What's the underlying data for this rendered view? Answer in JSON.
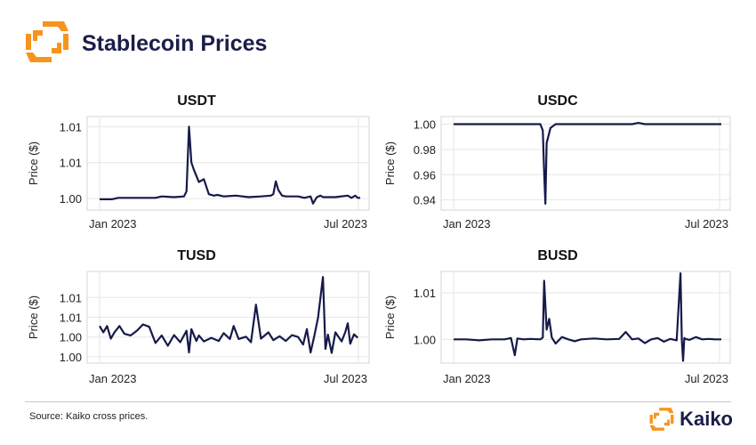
{
  "header": {
    "title": "Stablecoin Prices"
  },
  "footer": {
    "source": "Source: Kaiko cross prices.",
    "brand": "Kaiko"
  },
  "colors": {
    "line": "#161a4a",
    "grid": "#e6e6e6",
    "frame": "#d4d4d4",
    "brand_orange": "#f7941d",
    "brand_navy": "#1b1d4a"
  },
  "chart_data": [
    {
      "type": "line",
      "title": "USDT",
      "ylabel": "Price ($)",
      "xlabel": "",
      "x_tick_labels": [
        "Jan 2023",
        "Jul 2023"
      ],
      "y_tick_labels": [
        "1.00",
        "1.01",
        "1.01"
      ],
      "y_tick_values": [
        1.0,
        1.005,
        1.01
      ],
      "ylim": [
        0.9984,
        1.0114
      ],
      "x_range": [
        0,
        210
      ],
      "series": [
        {
          "name": "USDT",
          "x": [
            0,
            10,
            15,
            20,
            30,
            45,
            50,
            60,
            68,
            70,
            72,
            74,
            76,
            80,
            84,
            88,
            92,
            95,
            100,
            110,
            120,
            130,
            138,
            140,
            142,
            144,
            147,
            150,
            160,
            165,
            170,
            172,
            175,
            178,
            180,
            183,
            190,
            200,
            203,
            206,
            208,
            210
          ],
          "y": [
            0.9999,
            0.9999,
            1.0001,
            1.0001,
            1.0001,
            1.0001,
            1.0003,
            1.0002,
            1.0003,
            1.001,
            1.01,
            1.005,
            1.004,
            1.0023,
            1.0027,
            1.0006,
            1.0004,
            1.0005,
            1.0003,
            1.0004,
            1.0002,
            1.0003,
            1.0004,
            1.0006,
            1.0024,
            1.0012,
            1.0004,
            1.0003,
            1.0003,
            1.0001,
            1.0003,
            0.9993,
            1.0002,
            1.0004,
            1.0002,
            1.0002,
            1.0002,
            1.0004,
            1.0001,
            1.0004,
            1.0001,
            1.0001
          ]
        }
      ]
    },
    {
      "type": "line",
      "title": "USDC",
      "ylabel": "Price ($)",
      "xlabel": "",
      "x_tick_labels": [
        "Jan 2023",
        "Jul 2023"
      ],
      "y_tick_labels": [
        "1.00",
        "0.98",
        "0.96",
        "0.94"
      ],
      "y_tick_values": [
        1.0,
        0.98,
        0.96,
        0.94
      ],
      "ylim": [
        0.932,
        1.006
      ],
      "x_range": [
        0,
        210
      ],
      "series": [
        {
          "name": "USDC",
          "x": [
            0,
            20,
            40,
            60,
            68,
            70,
            71,
            72,
            73,
            76,
            80,
            90,
            110,
            130,
            140,
            145,
            150,
            170,
            190,
            210
          ],
          "y": [
            1.0,
            1.0,
            1.0,
            1.0,
            1.0,
            0.995,
            0.962,
            0.937,
            0.985,
            0.997,
            1.0,
            1.0,
            1.0,
            1.0,
            1.0,
            1.001,
            1.0,
            1.0,
            1.0,
            1.0
          ]
        }
      ]
    },
    {
      "type": "line",
      "title": "TUSD",
      "ylabel": "Price ($)",
      "xlabel": "",
      "x_tick_labels": [
        "Jan 2023",
        "Jul 2023"
      ],
      "y_tick_labels": [
        "1.01",
        "1.01",
        "1.00",
        "1.00"
      ],
      "y_tick_values": [
        1.01,
        1.005,
        1.0,
        0.995
      ],
      "ylim": [
        0.9934,
        1.0166
      ],
      "x_range": [
        0,
        210
      ],
      "series": [
        {
          "name": "TUSD",
          "x": [
            0,
            3,
            6,
            9,
            12,
            16,
            20,
            25,
            30,
            35,
            40,
            45,
            50,
            55,
            60,
            65,
            70,
            72,
            74,
            78,
            80,
            84,
            90,
            96,
            100,
            105,
            108,
            112,
            118,
            122,
            126,
            130,
            136,
            140,
            145,
            150,
            155,
            160,
            164,
            167,
            170,
            173,
            176,
            180,
            182,
            184,
            187,
            190,
            195,
            198,
            200,
            202,
            205,
            208
          ],
          "y": [
            1.0028,
            1.0012,
            1.0028,
            0.9996,
            1.0012,
            1.0028,
            1.0008,
            1.0004,
            1.0016,
            1.0032,
            1.0026,
            0.9985,
            1.0004,
            0.9978,
            1.0005,
            0.9987,
            1.0016,
            0.9961,
            1.002,
            0.999,
            1.0004,
            0.9989,
            0.9998,
            0.999,
            1.001,
            0.9995,
            1.0028,
            0.9995,
            1.0001,
            0.9987,
            1.0082,
            0.9996,
            1.0012,
            0.9992,
            1.0002,
            0.999,
            1.0005,
            1.0,
            0.9981,
            1.002,
            0.9961,
            1.0003,
            1.0049,
            1.0152,
            0.997,
            1.0006,
            0.996,
            1.0012,
            0.9989,
            1.0013,
            1.0035,
            0.9983,
            1.0007,
            0.9998
          ]
        }
      ]
    },
    {
      "type": "line",
      "title": "BUSD",
      "ylabel": "Price ($)",
      "xlabel": "",
      "x_tick_labels": [
        "Jan 2023",
        "Jul 2023"
      ],
      "y_tick_labels": [
        "1.01",
        "1.00"
      ],
      "y_tick_values": [
        1.01,
        1.0
      ],
      "ylim": [
        0.9949,
        1.0146
      ],
      "x_range": [
        0,
        210
      ],
      "series": [
        {
          "name": "BUSD",
          "x": [
            0,
            10,
            20,
            30,
            40,
            45,
            48,
            50,
            55,
            60,
            68,
            70,
            71,
            73,
            75,
            77,
            80,
            85,
            90,
            95,
            100,
            110,
            120,
            130,
            135,
            140,
            145,
            150,
            155,
            160,
            165,
            170,
            175,
            178,
            179,
            180,
            181,
            182,
            185,
            190,
            195,
            200,
            205,
            210
          ],
          "y": [
            1.0,
            1.0,
            0.9998,
            1.0,
            1.0,
            1.0003,
            0.9966,
            1.0002,
            1.0,
            1.0001,
            1.0,
            1.0004,
            1.0126,
            1.0021,
            1.0044,
            1.0004,
            0.9991,
            1.0005,
            1.0,
            0.9996,
            1.0,
            1.0002,
            1.0,
            1.0001,
            1.0016,
            1.0,
            1.0002,
            0.9992,
            1.0,
            1.0003,
            0.9995,
            1.0001,
            0.9998,
            1.0142,
            0.9999,
            0.9954,
            1.0003,
            1.0001,
            0.9999,
            1.0005,
            1.0,
            1.0001,
            1.0,
            1.0
          ]
        }
      ]
    }
  ]
}
